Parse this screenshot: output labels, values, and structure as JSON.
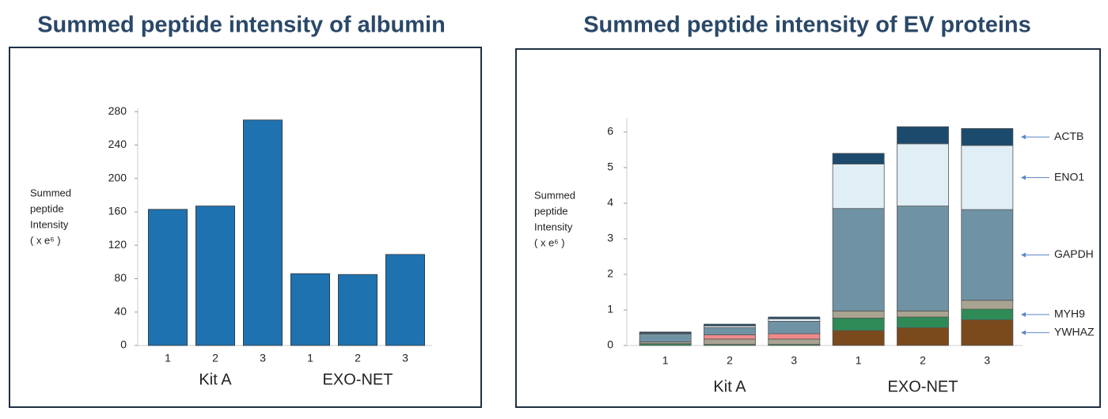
{
  "chart_data": [
    {
      "type": "bar",
      "title": "Summed peptide intensity of albumin",
      "y_label": [
        "Summed",
        "peptide",
        "Intensity",
        "( x e⁶ )"
      ],
      "categories": [
        "1",
        "2",
        "3",
        "1",
        "2",
        "3"
      ],
      "groups": [
        "Kit A",
        "EXO-NET"
      ],
      "values": [
        163,
        167,
        270,
        86,
        85,
        109
      ],
      "color": "#1f72b0",
      "ylim": [
        0,
        284
      ],
      "yticks": [
        0,
        40,
        80,
        120,
        160,
        200,
        240,
        280
      ]
    },
    {
      "type": "stacked_bar",
      "title": "Summed peptide intensity of EV proteins",
      "y_label": [
        "Summed",
        "peptide",
        "Intensity",
        "( x e⁶ )"
      ],
      "categories": [
        "1",
        "2",
        "3",
        "1",
        "2",
        "3"
      ],
      "groups": [
        "Kit A",
        "EXO-NET"
      ],
      "series": [
        {
          "name": "YWHAZ",
          "color": "#7a4a1c",
          "values": [
            0,
            0,
            0,
            0.42,
            0.5,
            0.72
          ]
        },
        {
          "name": "MYH9",
          "color": "#2e8b57",
          "values": [
            0.05,
            0.03,
            0.03,
            0.35,
            0.3,
            0.3
          ]
        },
        {
          "name": null,
          "color": "#a9a491",
          "values": [
            0.05,
            0.15,
            0.15,
            0.2,
            0.17,
            0.25
          ]
        },
        {
          "name": null,
          "color": "#ef8a8a",
          "values": [
            0,
            0.12,
            0.15,
            0,
            0,
            0
          ]
        },
        {
          "name": "GAPDH",
          "color": "#6f93a4",
          "values": [
            0.22,
            0.2,
            0.35,
            2.88,
            2.95,
            2.55
          ]
        },
        {
          "name": "ENO1",
          "color": "#e0eef6",
          "values": [
            0.02,
            0.05,
            0.07,
            1.25,
            1.75,
            1.8
          ]
        },
        {
          "name": "ACTB",
          "color": "#1c4a6c",
          "values": [
            0.04,
            0.05,
            0.05,
            0.3,
            0.48,
            0.48
          ]
        }
      ],
      "ylim": [
        0,
        6.4
      ],
      "yticks": [
        0,
        1,
        2,
        3,
        4,
        5,
        6
      ]
    }
  ]
}
